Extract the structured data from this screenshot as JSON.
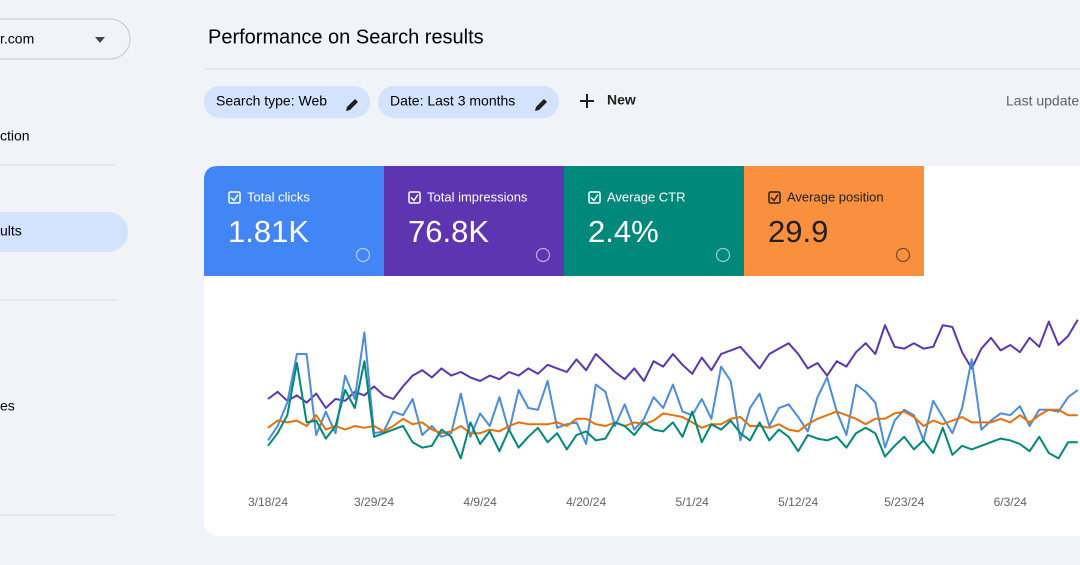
{
  "sidebar": {
    "property": "r.com",
    "items": [
      "ction",
      "ults",
      "es"
    ]
  },
  "header": {
    "title": "Performance on Search results"
  },
  "filters": {
    "chips": [
      "Search type: Web",
      "Date: Last 3 months"
    ],
    "new": "New",
    "last_update": "Last update"
  },
  "cards": [
    {
      "label": "Total clicks",
      "value": "1.81K"
    },
    {
      "label": "Total impressions",
      "value": "76.8K"
    },
    {
      "label": "Average CTR",
      "value": "2.4%"
    },
    {
      "label": "Average position",
      "value": "29.9"
    }
  ],
  "performance_chart": {
    "type": "line",
    "ylim": [
      0,
      100
    ],
    "categories": [
      "3/18/24",
      null,
      null,
      null,
      null,
      null,
      null,
      null,
      null,
      null,
      null,
      "3/29/24",
      null,
      null,
      null,
      null,
      null,
      null,
      null,
      null,
      null,
      null,
      "4/9/24",
      null,
      null,
      null,
      null,
      null,
      null,
      null,
      null,
      null,
      null,
      "4/20/24",
      null,
      null,
      null,
      null,
      null,
      null,
      null,
      null,
      null,
      null,
      "5/1/24",
      null,
      null,
      null,
      null,
      null,
      null,
      null,
      null,
      null,
      null,
      "5/12/24",
      null,
      null,
      null,
      null,
      null,
      null,
      null,
      null,
      null,
      null,
      "5/23/24",
      null,
      null,
      null,
      null,
      null,
      null,
      null,
      null,
      null,
      null,
      "6/3/24",
      null,
      null,
      null,
      null,
      null,
      null,
      null
    ],
    "series": [
      {
        "name": "Total impressions",
        "color": "#5e35b1",
        "values": [
          45,
          49,
          44,
          47,
          43,
          48,
          40,
          45,
          44,
          49,
          47,
          52,
          47,
          45,
          52,
          58,
          61,
          57,
          62,
          58,
          60,
          57,
          55,
          58,
          56,
          60,
          58,
          62,
          59,
          64,
          62,
          60,
          67,
          61,
          70,
          65,
          60,
          56,
          62,
          55,
          66,
          63,
          70,
          64,
          59,
          68,
          61,
          70,
          72,
          74,
          68,
          62,
          70,
          73,
          76,
          70,
          62,
          65,
          58,
          66,
          63,
          71,
          76,
          70,
          86,
          74,
          73,
          76,
          73,
          74,
          86,
          85,
          71,
          62,
          73,
          79,
          72,
          75,
          71,
          79,
          74,
          88,
          75,
          80,
          89
        ]
      },
      {
        "name": "Total clicks",
        "color": "#4a8ddc",
        "values": [
          22,
          30,
          43,
          70,
          70,
          25,
          38,
          26,
          58,
          45,
          82,
          26,
          27,
          38,
          36,
          45,
          25,
          30,
          24,
          26,
          48,
          24,
          37,
          30,
          46,
          27,
          50,
          40,
          39,
          55,
          29,
          31,
          32,
          20,
          53,
          49,
          30,
          42,
          28,
          34,
          46,
          40,
          53,
          38,
          36,
          45,
          34,
          63,
          55,
          22,
          40,
          48,
          30,
          40,
          42,
          35,
          27,
          46,
          57,
          38,
          25,
          53,
          49,
          43,
          18,
          33,
          39,
          36,
          22,
          44,
          35,
          26,
          40,
          67,
          28,
          33,
          37,
          36,
          41,
          30,
          39,
          39,
          38,
          46,
          50
        ]
      },
      {
        "name": "Average position",
        "color": "#e8710a",
        "values": [
          29,
          33,
          32,
          33,
          30,
          36,
          28,
          30,
          28,
          30,
          29,
          30,
          27,
          30,
          34,
          31,
          32,
          28,
          26,
          27,
          30,
          26,
          26,
          28,
          27,
          30,
          32,
          31,
          31,
          31,
          32,
          30,
          34,
          34,
          31,
          30,
          32,
          30,
          32,
          31,
          33,
          37,
          36,
          35,
          32,
          29,
          31,
          31,
          34,
          35,
          30,
          30,
          29,
          31,
          28,
          27,
          31,
          34,
          36,
          38,
          36,
          34,
          31,
          34,
          34,
          37,
          38,
          35,
          30,
          33,
          31,
          33,
          35,
          32,
          32,
          32,
          34,
          32,
          36,
          32,
          36,
          39,
          39,
          36,
          36
        ]
      },
      {
        "name": "Average CTR",
        "color": "#00897b",
        "values": [
          19,
          26,
          36,
          65,
          32,
          33,
          23,
          30,
          50,
          40,
          66,
          24,
          26,
          28,
          30,
          21,
          18,
          19,
          28,
          24,
          12,
          32,
          20,
          27,
          16,
          28,
          18,
          24,
          29,
          21,
          26,
          17,
          25,
          27,
          22,
          23,
          32,
          30,
          25,
          32,
          28,
          27,
          32,
          24,
          38,
          21,
          31,
          28,
          33,
          26,
          22,
          32,
          22,
          28,
          24,
          16,
          25,
          23,
          22,
          24,
          18,
          26,
          29,
          26,
          13,
          19,
          24,
          17,
          22,
          15,
          29,
          14,
          19,
          17,
          19,
          21,
          23,
          22,
          20,
          16,
          24,
          15,
          12,
          21,
          21
        ]
      }
    ]
  }
}
